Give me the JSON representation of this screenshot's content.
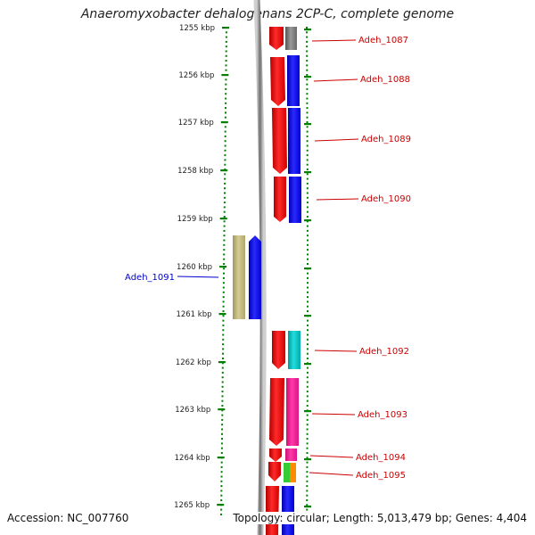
{
  "header": {
    "title": "Anaeromyxobacter dehalogenans 2CP-C, complete genome"
  },
  "footer": {
    "accession": "Accession: NC_007760",
    "summary": "Topology: circular; Length: 5,013,479 bp; Genes: 4,404"
  },
  "ruler": {
    "unit": "kbp",
    "ticks": [
      {
        "label": "1255 kbp"
      },
      {
        "label": "1256 kbp"
      },
      {
        "label": "1257 kbp"
      },
      {
        "label": "1258 kbp"
      },
      {
        "label": "1259 kbp"
      },
      {
        "label": "1260 kbp"
      },
      {
        "label": "1261 kbp"
      },
      {
        "label": "1262 kbp"
      },
      {
        "label": "1263 kbp"
      },
      {
        "label": "1264 kbp"
      },
      {
        "label": "1265 kbp"
      }
    ]
  },
  "genes": [
    {
      "label": "Adeh_1087",
      "color": "#cc0000"
    },
    {
      "label": "Adeh_1088",
      "color": "#cc0000"
    },
    {
      "label": "Adeh_1089",
      "color": "#cc0000"
    },
    {
      "label": "Adeh_1090",
      "color": "#cc0000"
    },
    {
      "label": "Adeh_1091",
      "color": "#0000cc"
    },
    {
      "label": "Adeh_1092",
      "color": "#cc0000"
    },
    {
      "label": "Adeh_1093",
      "color": "#cc0000"
    },
    {
      "label": "Adeh_1094",
      "color": "#cc0000"
    },
    {
      "label": "Adeh_1095",
      "color": "#cc0000"
    }
  ],
  "colors": {
    "cds_forward": "#ff0000",
    "cds_reverse": "#0000ff",
    "cog_blue": "#0000ff",
    "cog_gray": "#808080",
    "cog_cyan": "#00cccc",
    "cog_pink": "#ff1493",
    "cog_olive": "#c0b878",
    "cog_green": "#33cc33",
    "cog_orange": "#ff8c00",
    "ruler_green": "#008000",
    "backbone": "#7f7f7f"
  }
}
